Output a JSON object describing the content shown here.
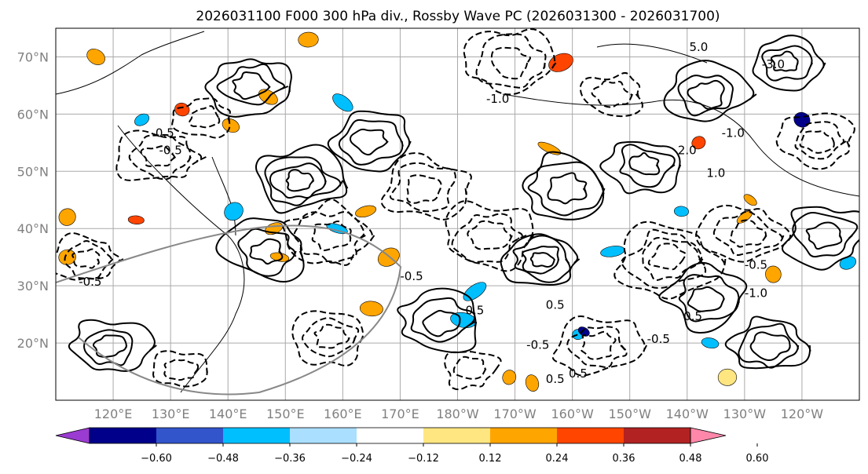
{
  "chart_data": {
    "type": "contour-map",
    "title": "2026031100 F000 300 hPa div., Rossby Wave PC (2026031300 - 2026031700)",
    "lat_ticks": [
      {
        "value": 70,
        "label": "70°N"
      },
      {
        "value": 60,
        "label": "60°N"
      },
      {
        "value": 50,
        "label": "50°N"
      },
      {
        "value": 40,
        "label": "40°N"
      },
      {
        "value": 30,
        "label": "30°N"
      },
      {
        "value": 20,
        "label": "20°N"
      }
    ],
    "lon_ticks": [
      {
        "value": 120,
        "label": "120°E"
      },
      {
        "value": 130,
        "label": "130°E"
      },
      {
        "value": 140,
        "label": "140°E"
      },
      {
        "value": 150,
        "label": "150°E"
      },
      {
        "value": 160,
        "label": "160°E"
      },
      {
        "value": 170,
        "label": "170°E"
      },
      {
        "value": 180,
        "label": "180°W"
      },
      {
        "value": 190,
        "label": "170°W"
      },
      {
        "value": 200,
        "label": "160°W"
      },
      {
        "value": 210,
        "label": "150°W"
      },
      {
        "value": 220,
        "label": "140°W"
      },
      {
        "value": 230,
        "label": "130°W"
      },
      {
        "value": 240,
        "label": "120°W"
      }
    ],
    "lon_range": [
      110,
      250
    ],
    "lat_range": [
      10,
      75
    ],
    "colorbar": {
      "levels": [
        -0.6,
        -0.48,
        -0.36,
        -0.24,
        -0.12,
        0.12,
        0.24,
        0.36,
        0.48,
        0.6
      ],
      "tick_labels": [
        "−0.60",
        "−0.48",
        "−0.36",
        "−0.24",
        "−0.12",
        "0.12",
        "0.24",
        "0.36",
        "0.48",
        "0.60"
      ],
      "colors": [
        "#9a3bd1",
        "#00008b",
        "#3355cc",
        "#00bfff",
        "#aadfff",
        "#ffffff",
        "#ffe680",
        "#ffa500",
        "#ff4500",
        "#b22222",
        "#ff88aa"
      ],
      "extend": "both"
    },
    "contour_labels": [
      {
        "text": "-0.5",
        "lon": 116,
        "lat": 30
      },
      {
        "text": "-0.5",
        "lon": 130,
        "lat": 53
      },
      {
        "text": "-0.5",
        "lon": 172,
        "lat": 31
      },
      {
        "text": "-0.5",
        "lon": 194,
        "lat": 19
      },
      {
        "text": "-0.5",
        "lon": 215,
        "lat": 20
      },
      {
        "text": "-0.5",
        "lon": 232,
        "lat": 33
      },
      {
        "text": "-1.0",
        "lon": 187,
        "lat": 62
      },
      {
        "text": "-1.0",
        "lon": 228,
        "lat": 56
      },
      {
        "text": "-1.0",
        "lon": 232,
        "lat": 28
      },
      {
        "text": "-3.0",
        "lon": 235,
        "lat": 68
      },
      {
        "text": "0.5",
        "lon": 129,
        "lat": 56
      },
      {
        "text": "0.5",
        "lon": 197,
        "lat": 13
      },
      {
        "text": "0.5",
        "lon": 201,
        "lat": 14
      },
      {
        "text": "0.5",
        "lon": 183,
        "lat": 25
      },
      {
        "text": "1.0",
        "lon": 225,
        "lat": 49
      },
      {
        "text": "2.0",
        "lon": 220,
        "lat": 53
      },
      {
        "text": "5.0",
        "lon": 222,
        "lat": 71
      },
      {
        "text": "0.5",
        "lon": 221,
        "lat": 24
      },
      {
        "text": "0.5",
        "lon": 197,
        "lat": 26
      }
    ],
    "shaded_features": [
      {
        "lon": 132,
        "lat": 60.8,
        "value": 0.42
      },
      {
        "lon": 125,
        "lat": 59.0,
        "value": -0.3
      },
      {
        "lon": 124,
        "lat": 41.5,
        "value": 0.4
      },
      {
        "lon": 112,
        "lat": 42.0,
        "value": 0.3
      },
      {
        "lon": 112,
        "lat": 35.0,
        "value": 0.3
      },
      {
        "lon": 140.5,
        "lat": 58.0,
        "value": 0.3
      },
      {
        "lon": 148,
        "lat": 40.0,
        "value": 0.3
      },
      {
        "lon": 149,
        "lat": 35.0,
        "value": 0.3
      },
      {
        "lon": 141,
        "lat": 43.0,
        "value": -0.3
      },
      {
        "lon": 154,
        "lat": 73.0,
        "value": 0.3
      },
      {
        "lon": 147,
        "lat": 63.0,
        "value": 0.3
      },
      {
        "lon": 164,
        "lat": 43.0,
        "value": 0.3
      },
      {
        "lon": 159,
        "lat": 40.0,
        "value": -0.3
      },
      {
        "lon": 168,
        "lat": 35.0,
        "value": 0.3
      },
      {
        "lon": 165,
        "lat": 26.0,
        "value": 0.3
      },
      {
        "lon": 160,
        "lat": 62.0,
        "value": -0.3
      },
      {
        "lon": 207,
        "lat": 36.0,
        "value": -0.3
      },
      {
        "lon": 196,
        "lat": 54.0,
        "value": 0.3
      },
      {
        "lon": 198,
        "lat": 69.0,
        "value": 0.42
      },
      {
        "lon": 181,
        "lat": 24.0,
        "value": -0.3
      },
      {
        "lon": 183,
        "lat": 29.0,
        "value": -0.3
      },
      {
        "lon": 201,
        "lat": 21.5,
        "value": -0.3
      },
      {
        "lon": 202,
        "lat": 22.0,
        "value": -0.6
      },
      {
        "lon": 193,
        "lat": 13.0,
        "value": 0.3
      },
      {
        "lon": 189,
        "lat": 14.0,
        "value": 0.3
      },
      {
        "lon": 222,
        "lat": 55.0,
        "value": 0.42
      },
      {
        "lon": 219,
        "lat": 43.0,
        "value": -0.3
      },
      {
        "lon": 231,
        "lat": 45.0,
        "value": 0.3
      },
      {
        "lon": 235,
        "lat": 32.0,
        "value": 0.3
      },
      {
        "lon": 240,
        "lat": 59.0,
        "value": -0.5
      },
      {
        "lon": 248,
        "lat": 34.0,
        "value": -0.3
      },
      {
        "lon": 224,
        "lat": 20.0,
        "value": -0.3
      },
      {
        "lon": 230,
        "lat": 42.0,
        "value": 0.3
      },
      {
        "lon": 227,
        "lat": 14.0,
        "value": 0.18
      },
      {
        "lon": 117,
        "lat": 70.0,
        "value": 0.3
      }
    ]
  }
}
